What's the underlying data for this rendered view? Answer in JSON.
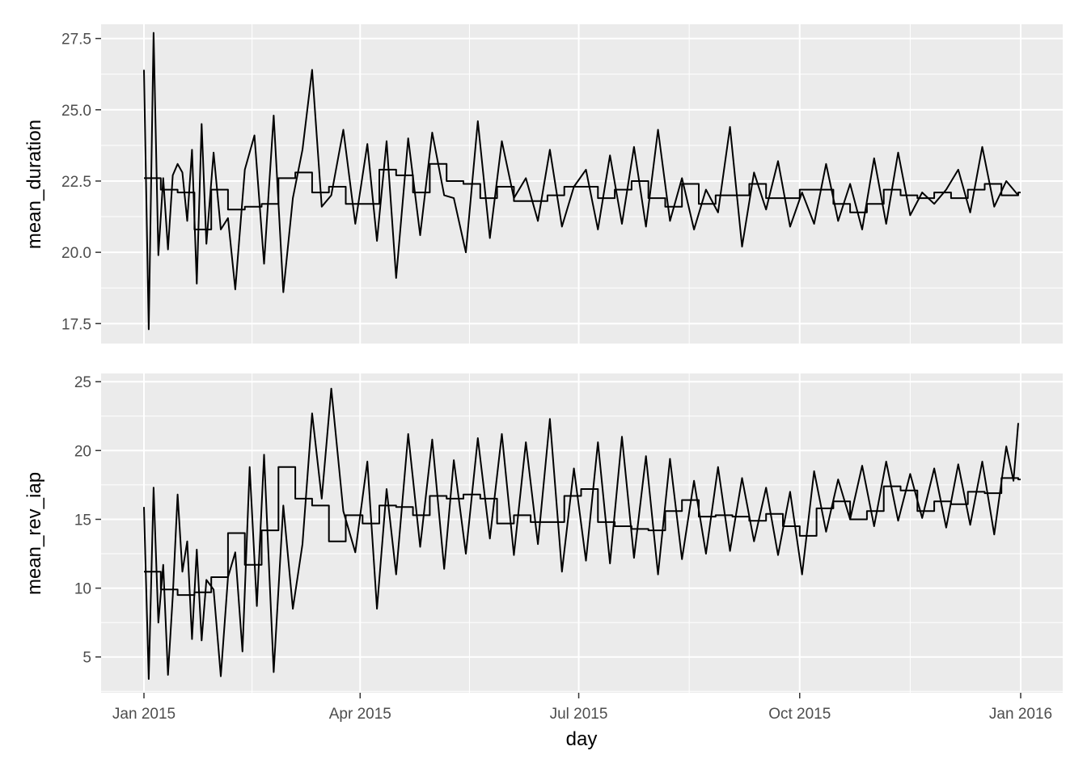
{
  "chart_data": {
    "type": "line",
    "xlabel": "day",
    "x_ticks": [
      "Jan 2015",
      "Apr 2015",
      "Jul 2015",
      "Oct 2015",
      "Jan 2016"
    ],
    "x_range": [
      "2015-01-01",
      "2016-01-01"
    ],
    "panels": [
      {
        "ylabel": "mean_duration",
        "ylim": [
          16.8,
          28.0
        ],
        "y_ticks": [
          "17.5",
          "20.0",
          "22.5",
          "25.0",
          "27.5"
        ],
        "y_tick_values": [
          17.5,
          20.0,
          22.5,
          25.0,
          27.5
        ],
        "series": [
          {
            "kind": "daily",
            "x": [
              "2015-01-01",
              "2015-01-03",
              "2015-01-05",
              "2015-01-07",
              "2015-01-09",
              "2015-01-11",
              "2015-01-13",
              "2015-01-15",
              "2015-01-17",
              "2015-01-19",
              "2015-01-21",
              "2015-01-23",
              "2015-01-25",
              "2015-01-27",
              "2015-01-30",
              "2015-02-02",
              "2015-02-05",
              "2015-02-08",
              "2015-02-12",
              "2015-02-16",
              "2015-02-20",
              "2015-02-24",
              "2015-02-28",
              "2015-03-04",
              "2015-03-08",
              "2015-03-12",
              "2015-03-16",
              "2015-03-20",
              "2015-03-25",
              "2015-03-30",
              "2015-04-04",
              "2015-04-08",
              "2015-04-12",
              "2015-04-16",
              "2015-04-21",
              "2015-04-26",
              "2015-05-01",
              "2015-05-06",
              "2015-05-10",
              "2015-05-15",
              "2015-05-20",
              "2015-05-25",
              "2015-05-30",
              "2015-06-04",
              "2015-06-09",
              "2015-06-14",
              "2015-06-19",
              "2015-06-24",
              "2015-06-29",
              "2015-07-04",
              "2015-07-09",
              "2015-07-14",
              "2015-07-19",
              "2015-07-24",
              "2015-07-29",
              "2015-08-03",
              "2015-08-08",
              "2015-08-13",
              "2015-08-18",
              "2015-08-23",
              "2015-08-28",
              "2015-09-02",
              "2015-09-07",
              "2015-09-12",
              "2015-09-17",
              "2015-09-22",
              "2015-09-27",
              "2015-10-02",
              "2015-10-07",
              "2015-10-12",
              "2015-10-17",
              "2015-10-22",
              "2015-10-27",
              "2015-11-01",
              "2015-11-06",
              "2015-11-11",
              "2015-11-16",
              "2015-11-21",
              "2015-11-26",
              "2015-12-01",
              "2015-12-06",
              "2015-12-11",
              "2015-12-16",
              "2015-12-21",
              "2015-12-26",
              "2015-12-31"
            ],
            "y": [
              26.4,
              17.3,
              27.7,
              19.9,
              22.6,
              20.1,
              22.7,
              23.1,
              22.8,
              21.1,
              23.6,
              18.9,
              24.5,
              20.3,
              23.5,
              20.8,
              21.2,
              18.7,
              22.9,
              24.1,
              19.6,
              24.8,
              18.6,
              21.9,
              23.6,
              26.4,
              21.6,
              22.0,
              24.3,
              21.0,
              23.8,
              20.4,
              23.9,
              19.1,
              24.0,
              20.6,
              24.2,
              22.0,
              21.9,
              20.0,
              24.6,
              20.5,
              23.9,
              21.9,
              22.6,
              21.1,
              23.6,
              20.9,
              22.3,
              22.9,
              20.8,
              23.4,
              21.0,
              23.7,
              20.9,
              24.3,
              21.1,
              22.6,
              20.8,
              22.2,
              21.4,
              24.4,
              20.2,
              22.8,
              21.5,
              23.2,
              20.9,
              22.1,
              21.0,
              23.1,
              21.1,
              22.4,
              20.8,
              23.3,
              21.0,
              23.5,
              21.3,
              22.1,
              21.7,
              22.2,
              22.9,
              21.4,
              23.7,
              21.6,
              22.5,
              22.0
            ]
          },
          {
            "kind": "weekly-mean",
            "x": [
              "2015-01-01",
              "2015-01-08",
              "2015-01-15",
              "2015-01-22",
              "2015-01-29",
              "2015-02-05",
              "2015-02-12",
              "2015-02-19",
              "2015-02-26",
              "2015-03-05",
              "2015-03-12",
              "2015-03-19",
              "2015-03-26",
              "2015-04-02",
              "2015-04-09",
              "2015-04-16",
              "2015-04-23",
              "2015-04-30",
              "2015-05-07",
              "2015-05-14",
              "2015-05-21",
              "2015-05-28",
              "2015-06-04",
              "2015-06-11",
              "2015-06-18",
              "2015-06-25",
              "2015-07-02",
              "2015-07-09",
              "2015-07-16",
              "2015-07-23",
              "2015-07-30",
              "2015-08-06",
              "2015-08-13",
              "2015-08-20",
              "2015-08-27",
              "2015-09-03",
              "2015-09-10",
              "2015-09-17",
              "2015-09-24",
              "2015-10-01",
              "2015-10-08",
              "2015-10-15",
              "2015-10-22",
              "2015-10-29",
              "2015-11-05",
              "2015-11-12",
              "2015-11-19",
              "2015-11-26",
              "2015-12-03",
              "2015-12-10",
              "2015-12-17",
              "2015-12-24",
              "2015-12-31"
            ],
            "y": [
              22.6,
              22.2,
              22.1,
              20.8,
              22.2,
              21.5,
              21.6,
              21.7,
              22.6,
              22.8,
              22.1,
              22.3,
              21.7,
              21.7,
              22.9,
              22.7,
              22.1,
              23.1,
              22.5,
              22.4,
              21.9,
              22.3,
              21.8,
              21.8,
              22.0,
              22.3,
              22.3,
              21.9,
              22.2,
              22.5,
              21.9,
              21.6,
              22.4,
              21.7,
              22.0,
              22.0,
              22.4,
              21.9,
              21.9,
              22.2,
              22.2,
              21.7,
              21.4,
              21.7,
              22.2,
              22.0,
              21.9,
              22.1,
              21.9,
              22.2,
              22.4,
              22.0,
              22.1
            ]
          }
        ]
      },
      {
        "ylabel": "mean_rev_iap",
        "ylim": [
          2.4,
          25.6
        ],
        "y_ticks": [
          "5",
          "10",
          "15",
          "20",
          "25"
        ],
        "y_tick_values": [
          5,
          10,
          15,
          20,
          25
        ],
        "series": [
          {
            "kind": "daily",
            "x": [
              "2015-01-01",
              "2015-01-03",
              "2015-01-05",
              "2015-01-07",
              "2015-01-09",
              "2015-01-11",
              "2015-01-13",
              "2015-01-15",
              "2015-01-17",
              "2015-01-19",
              "2015-01-21",
              "2015-01-23",
              "2015-01-25",
              "2015-01-27",
              "2015-01-30",
              "2015-02-02",
              "2015-02-05",
              "2015-02-08",
              "2015-02-11",
              "2015-02-14",
              "2015-02-17",
              "2015-02-20",
              "2015-02-24",
              "2015-02-28",
              "2015-03-04",
              "2015-03-08",
              "2015-03-12",
              "2015-03-16",
              "2015-03-20",
              "2015-03-25",
              "2015-03-30",
              "2015-04-04",
              "2015-04-08",
              "2015-04-12",
              "2015-04-16",
              "2015-04-21",
              "2015-04-26",
              "2015-05-01",
              "2015-05-06",
              "2015-05-10",
              "2015-05-15",
              "2015-05-20",
              "2015-05-25",
              "2015-05-30",
              "2015-06-04",
              "2015-06-09",
              "2015-06-14",
              "2015-06-19",
              "2015-06-24",
              "2015-06-29",
              "2015-07-04",
              "2015-07-09",
              "2015-07-14",
              "2015-07-19",
              "2015-07-24",
              "2015-07-29",
              "2015-08-03",
              "2015-08-08",
              "2015-08-13",
              "2015-08-18",
              "2015-08-23",
              "2015-08-28",
              "2015-09-02",
              "2015-09-07",
              "2015-09-12",
              "2015-09-17",
              "2015-09-22",
              "2015-09-27",
              "2015-10-02",
              "2015-10-07",
              "2015-10-12",
              "2015-10-17",
              "2015-10-22",
              "2015-10-27",
              "2015-11-01",
              "2015-11-06",
              "2015-11-11",
              "2015-11-16",
              "2015-11-21",
              "2015-11-26",
              "2015-12-01",
              "2015-12-06",
              "2015-12-11",
              "2015-12-16",
              "2015-12-21",
              "2015-12-26",
              "2015-12-29",
              "2015-12-31"
            ],
            "y": [
              15.9,
              3.4,
              17.3,
              7.5,
              11.7,
              3.7,
              9.4,
              16.8,
              11.2,
              13.4,
              6.3,
              12.8,
              6.2,
              10.6,
              9.9,
              3.6,
              10.8,
              12.6,
              5.4,
              18.8,
              8.7,
              19.7,
              3.9,
              16.0,
              8.5,
              13.2,
              22.7,
              16.5,
              24.5,
              15.6,
              12.6,
              19.2,
              8.5,
              17.2,
              11.0,
              21.2,
              13.0,
              20.8,
              11.4,
              19.3,
              12.5,
              20.9,
              13.6,
              21.2,
              12.4,
              20.6,
              13.2,
              22.3,
              11.2,
              18.7,
              12.0,
              20.6,
              11.8,
              21.0,
              12.2,
              19.6,
              11.0,
              19.4,
              12.1,
              17.8,
              12.5,
              18.8,
              12.7,
              18.0,
              13.4,
              17.3,
              12.4,
              17.0,
              11.0,
              18.5,
              14.1,
              17.9,
              15.0,
              18.9,
              14.5,
              19.2,
              14.9,
              18.3,
              15.1,
              18.7,
              14.4,
              19.0,
              14.6,
              19.2,
              13.9,
              20.3,
              17.8,
              22.0
            ]
          },
          {
            "kind": "weekly-mean",
            "x": [
              "2015-01-01",
              "2015-01-08",
              "2015-01-15",
              "2015-01-22",
              "2015-01-29",
              "2015-02-05",
              "2015-02-12",
              "2015-02-19",
              "2015-02-26",
              "2015-03-05",
              "2015-03-12",
              "2015-03-19",
              "2015-03-26",
              "2015-04-02",
              "2015-04-09",
              "2015-04-16",
              "2015-04-23",
              "2015-04-30",
              "2015-05-07",
              "2015-05-14",
              "2015-05-21",
              "2015-05-28",
              "2015-06-04",
              "2015-06-11",
              "2015-06-18",
              "2015-06-25",
              "2015-07-02",
              "2015-07-09",
              "2015-07-16",
              "2015-07-23",
              "2015-07-30",
              "2015-08-06",
              "2015-08-13",
              "2015-08-20",
              "2015-08-27",
              "2015-09-03",
              "2015-09-10",
              "2015-09-17",
              "2015-09-24",
              "2015-10-01",
              "2015-10-08",
              "2015-10-15",
              "2015-10-22",
              "2015-10-29",
              "2015-11-05",
              "2015-11-12",
              "2015-11-19",
              "2015-11-26",
              "2015-12-03",
              "2015-12-10",
              "2015-12-17",
              "2015-12-24",
              "2015-12-31"
            ],
            "y": [
              11.2,
              9.9,
              9.5,
              9.7,
              10.8,
              14.0,
              11.7,
              14.2,
              18.8,
              16.5,
              16.0,
              13.4,
              15.3,
              14.7,
              16.0,
              15.9,
              15.3,
              16.7,
              16.5,
              16.8,
              16.5,
              14.7,
              15.3,
              14.8,
              14.8,
              16.7,
              17.2,
              14.8,
              14.5,
              14.3,
              14.2,
              15.6,
              16.4,
              15.2,
              15.3,
              15.2,
              14.9,
              15.4,
              14.5,
              13.8,
              15.8,
              16.3,
              15.0,
              15.6,
              17.4,
              17.1,
              15.6,
              16.3,
              16.1,
              17.0,
              16.9,
              18.0,
              17.9
            ]
          }
        ]
      }
    ]
  }
}
